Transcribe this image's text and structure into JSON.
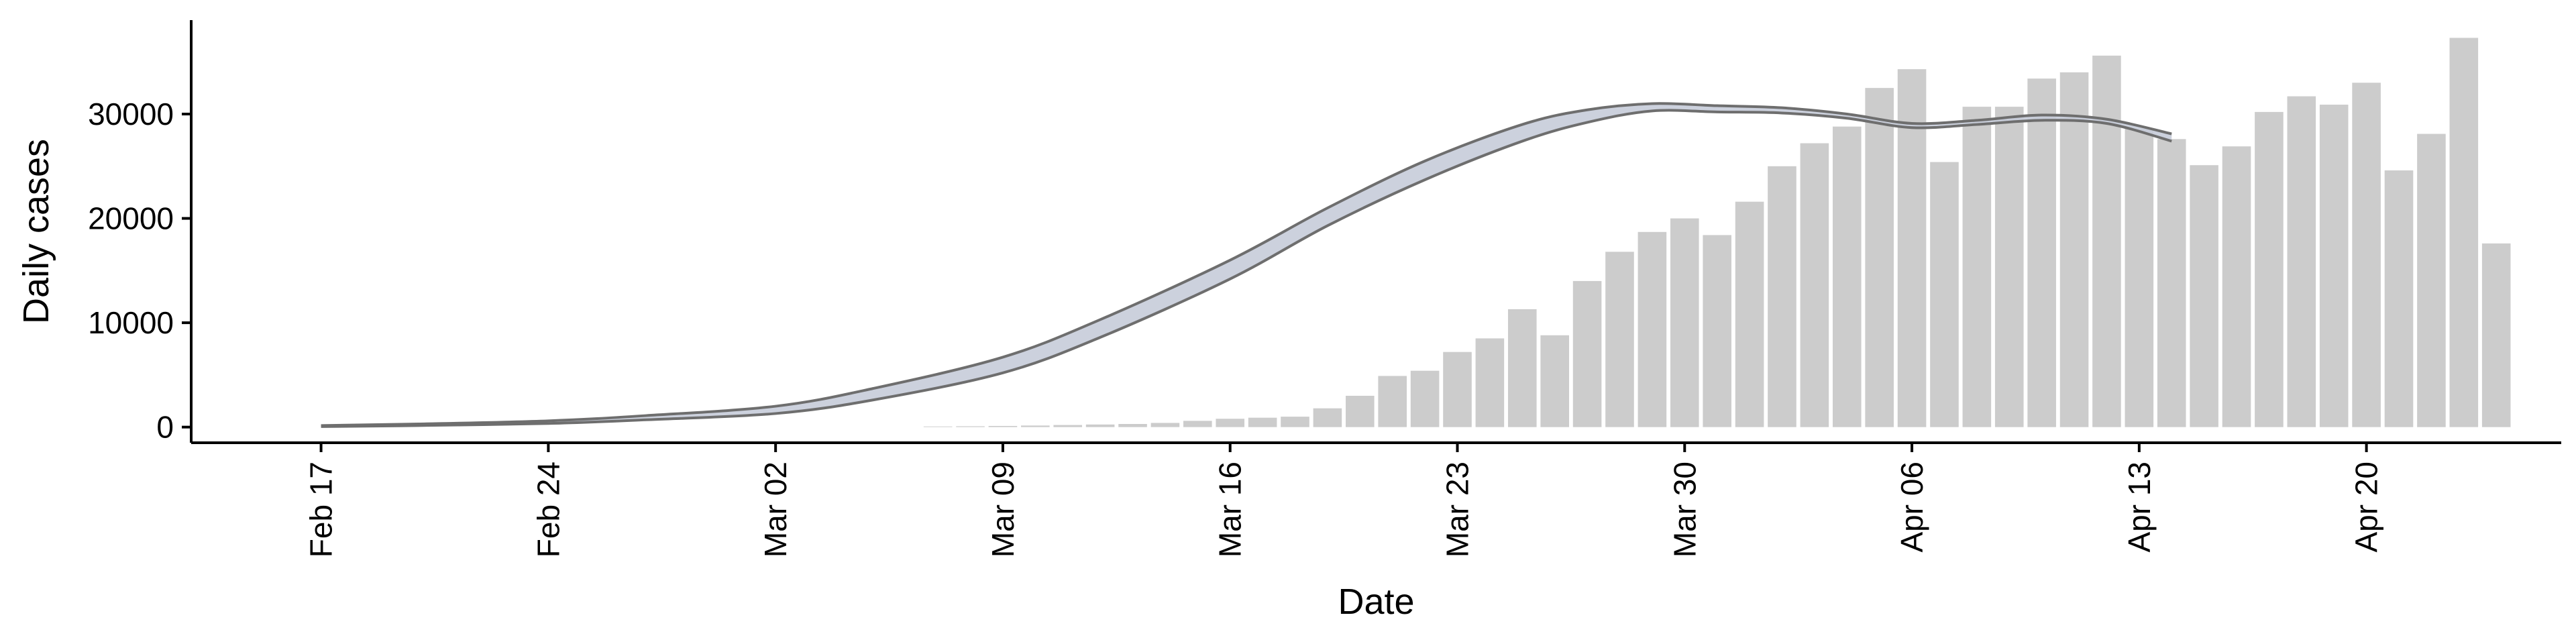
{
  "chart_data": {
    "type": "bar",
    "title": "",
    "xlabel": "Date",
    "ylabel": "Daily cases",
    "x_axis": {
      "type": "date",
      "range": [
        "2020-02-13",
        "2020-04-26"
      ],
      "ticks": [
        {
          "date": "2020-02-17",
          "label": "Feb 17"
        },
        {
          "date": "2020-02-24",
          "label": "Feb 24"
        },
        {
          "date": "2020-03-02",
          "label": "Mar 02"
        },
        {
          "date": "2020-03-09",
          "label": "Mar 09"
        },
        {
          "date": "2020-03-16",
          "label": "Mar 16"
        },
        {
          "date": "2020-03-23",
          "label": "Mar 23"
        },
        {
          "date": "2020-03-30",
          "label": "Mar 30"
        },
        {
          "date": "2020-04-06",
          "label": "Apr 06"
        },
        {
          "date": "2020-04-13",
          "label": "Apr 13"
        },
        {
          "date": "2020-04-20",
          "label": "Apr 20"
        }
      ]
    },
    "y_axis": {
      "range": [
        -1500,
        39000
      ],
      "ticks": [
        0,
        10000,
        20000,
        30000
      ]
    },
    "grid": false,
    "legend": "none",
    "colors": {
      "bars": "#cccccc",
      "band_fill": "#c6ccd9",
      "band_edge": "#6e6e6e",
      "axis": "#000000"
    },
    "bars": {
      "name": "",
      "x": [
        "2020-03-07",
        "2020-03-08",
        "2020-03-09",
        "2020-03-10",
        "2020-03-11",
        "2020-03-12",
        "2020-03-13",
        "2020-03-14",
        "2020-03-15",
        "2020-03-16",
        "2020-03-17",
        "2020-03-18",
        "2020-03-19",
        "2020-03-20",
        "2020-03-21",
        "2020-03-22",
        "2020-03-23",
        "2020-03-24",
        "2020-03-25",
        "2020-03-26",
        "2020-03-27",
        "2020-03-28",
        "2020-03-29",
        "2020-03-30",
        "2020-03-31",
        "2020-04-01",
        "2020-04-02",
        "2020-04-03",
        "2020-04-04",
        "2020-04-05",
        "2020-04-06",
        "2020-04-07",
        "2020-04-08",
        "2020-04-09",
        "2020-04-10",
        "2020-04-11",
        "2020-04-12",
        "2020-04-13",
        "2020-04-14",
        "2020-04-15",
        "2020-04-16",
        "2020-04-17",
        "2020-04-18",
        "2020-04-19",
        "2020-04-20",
        "2020-04-21",
        "2020-04-22",
        "2020-04-23",
        "2020-04-24"
      ],
      "values": [
        60,
        80,
        110,
        150,
        200,
        250,
        300,
        400,
        600,
        800,
        900,
        1000,
        1800,
        3000,
        4900,
        5400,
        7200,
        8500,
        11300,
        8800,
        14000,
        16800,
        18700,
        20000,
        18400,
        21600,
        25000,
        27200,
        28800,
        32500,
        34300,
        25400,
        30700,
        30700,
        33400,
        34000,
        35600,
        28600,
        27600,
        25100,
        26900,
        30200,
        31700,
        30900,
        33000,
        24600,
        28100,
        37300,
        17600
      ]
    },
    "curve": {
      "name": "",
      "x": [
        "2020-02-17",
        "2020-02-20",
        "2020-02-24",
        "2020-02-27",
        "2020-03-02",
        "2020-03-05",
        "2020-03-09",
        "2020-03-12",
        "2020-03-16",
        "2020-03-19",
        "2020-03-22",
        "2020-03-25",
        "2020-03-27",
        "2020-03-29",
        "2020-03-31",
        "2020-04-02",
        "2020-04-04",
        "2020-04-06",
        "2020-04-08",
        "2020-04-10",
        "2020-04-12",
        "2020-04-14"
      ],
      "upper": [
        150,
        300,
        600,
        1100,
        2000,
        3700,
        6700,
        10300,
        16000,
        21000,
        25500,
        29000,
        30400,
        31000,
        30800,
        30600,
        30000,
        29100,
        29400,
        29900,
        29500,
        28100
      ],
      "lower": [
        50,
        150,
        350,
        700,
        1300,
        2600,
        5200,
        8600,
        14200,
        19300,
        23700,
        27400,
        29200,
        30300,
        30200,
        30100,
        29600,
        28700,
        29000,
        29400,
        29100,
        27400
      ]
    }
  }
}
